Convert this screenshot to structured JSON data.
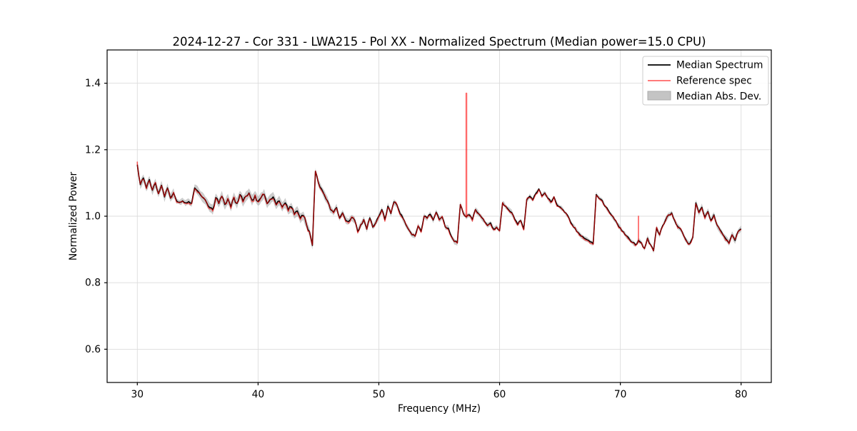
{
  "title": "2024-12-27 - Cor 331 - LWA215 - Pol XX - Normalized Spectrum (Median power=15.0 CPU)",
  "axes": {
    "xlabel": "Frequency (MHz)",
    "ylabel": "Normalized Power"
  },
  "legend": {
    "items": [
      {
        "label": "Median Spectrum",
        "color": "#000000",
        "style": "line"
      },
      {
        "label": "Reference spec",
        "color": "#ff0000",
        "alpha": 0.6,
        "style": "line"
      },
      {
        "label": "Median Abs. Dev.",
        "color": "#c4c4c4",
        "style": "patch"
      }
    ],
    "position": "upper right"
  },
  "chart_data": {
    "type": "line",
    "title": "2024-12-27 - Cor 331 - LWA215 - Pol XX - Normalized Spectrum (Median power=15.0 CPU)",
    "xlabel": "Frequency (MHz)",
    "ylabel": "Normalized Power",
    "xlim": [
      27.5,
      82.5
    ],
    "ylim": [
      0.5,
      1.5
    ],
    "xticks": [
      30,
      40,
      50,
      60,
      70,
      80
    ],
    "yticks": [
      0.6,
      0.8,
      1.0,
      1.2,
      1.4
    ],
    "grid": true,
    "x_start": 30,
    "x_step": 0.25,
    "noise_amplitude_segments": [
      [
        30.0,
        33.0,
        0.004
      ],
      [
        33.0,
        35.0,
        0.002
      ],
      [
        35.0,
        44.5,
        0.006
      ],
      [
        44.5,
        52.0,
        0.004
      ],
      [
        52.0,
        62.0,
        0.003
      ],
      [
        62.0,
        71.0,
        0.003
      ],
      [
        71.0,
        80.0,
        0.004
      ]
    ],
    "series": [
      {
        "name": "Median Spectrum",
        "color": "#000000",
        "values": [
          1.155,
          1.095,
          1.115,
          1.085,
          1.11,
          1.078,
          1.1,
          1.068,
          1.093,
          1.058,
          1.085,
          1.054,
          1.07,
          1.046,
          1.042,
          1.046,
          1.04,
          1.044,
          1.039,
          1.085,
          1.076,
          1.063,
          1.054,
          1.04,
          1.026,
          1.02,
          1.056,
          1.038,
          1.06,
          1.035,
          1.052,
          1.028,
          1.056,
          1.038,
          1.065,
          1.045,
          1.06,
          1.07,
          1.048,
          1.062,
          1.044,
          1.056,
          1.066,
          1.038,
          1.05,
          1.058,
          1.034,
          1.046,
          1.028,
          1.04,
          1.018,
          1.028,
          1.006,
          1.016,
          0.994,
          1.002,
          0.976,
          0.954,
          0.912,
          1.135,
          1.1,
          1.082,
          1.063,
          1.046,
          1.02,
          1.012,
          1.026,
          0.994,
          1.01,
          0.988,
          0.984,
          0.996,
          0.988,
          0.954,
          0.974,
          0.99,
          0.961,
          0.995,
          0.967,
          0.98,
          1.0,
          1.02,
          0.99,
          1.03,
          1.008,
          1.043,
          1.034,
          1.008,
          0.994,
          0.974,
          0.958,
          0.944,
          0.94,
          0.97,
          0.954,
          1.0,
          0.994,
          1.006,
          0.988,
          1.012,
          0.99,
          0.998,
          0.968,
          0.964,
          0.94,
          0.924,
          0.92,
          1.035,
          1.008,
          0.998,
          1.004,
          0.99,
          1.02,
          1.008,
          0.997,
          0.984,
          0.972,
          0.98,
          0.961,
          0.967,
          0.957,
          1.04,
          1.03,
          1.019,
          1.011,
          0.991,
          0.975,
          0.987,
          0.961,
          1.05,
          1.06,
          1.049,
          1.068,
          1.082,
          1.061,
          1.07,
          1.054,
          1.042,
          1.058,
          1.034,
          1.028,
          1.019,
          1.009,
          0.994,
          0.975,
          0.964,
          0.951,
          0.94,
          0.934,
          0.929,
          0.923,
          0.917,
          1.065,
          1.053,
          1.047,
          1.029,
          1.018,
          1.004,
          0.991,
          0.977,
          0.964,
          0.953,
          0.941,
          0.931,
          0.921,
          0.914,
          0.927,
          0.919,
          0.903,
          0.934,
          0.914,
          0.896,
          0.965,
          0.944,
          0.971,
          0.989,
          1.004,
          1.01,
          0.987,
          0.969,
          0.961,
          0.941,
          0.924,
          0.917,
          0.936,
          1.04,
          1.011,
          1.027,
          0.997,
          1.014,
          0.987,
          1.004,
          0.974,
          0.959,
          0.944,
          0.931,
          0.919,
          0.944,
          0.927,
          0.954,
          0.962
        ]
      },
      {
        "name": "Reference spec",
        "color": "#ff0000",
        "alpha": 0.6,
        "same_as": "Median Spectrum",
        "offset_bias": -0.0015,
        "offset_amplitude": 0.004,
        "spikes": [
          {
            "x": 30.0,
            "value": 1.163,
            "half_width": 0.008
          },
          {
            "x": 57.25,
            "value": 1.37,
            "half_width": 0.03
          },
          {
            "x": 71.5,
            "value": 1.0,
            "half_width": 0.012
          }
        ]
      },
      {
        "name": "Median Abs. Dev.",
        "color": "#c4c4c4",
        "edge_noise_amplitude": 0.0025,
        "band_half_width_segments": [
          [
            30.0,
            33.0,
            0.013
          ],
          [
            33.0,
            34.5,
            0.008
          ],
          [
            34.5,
            36.0,
            0.013
          ],
          [
            36.0,
            44.0,
            0.014
          ],
          [
            44.0,
            44.6,
            0.013
          ],
          [
            44.6,
            46.0,
            0.011
          ],
          [
            46.0,
            52.0,
            0.009
          ],
          [
            52.0,
            62.0,
            0.007
          ],
          [
            62.0,
            71.5,
            0.006
          ],
          [
            71.5,
            76.0,
            0.007
          ],
          [
            76.0,
            80.0,
            0.009
          ]
        ]
      }
    ]
  }
}
